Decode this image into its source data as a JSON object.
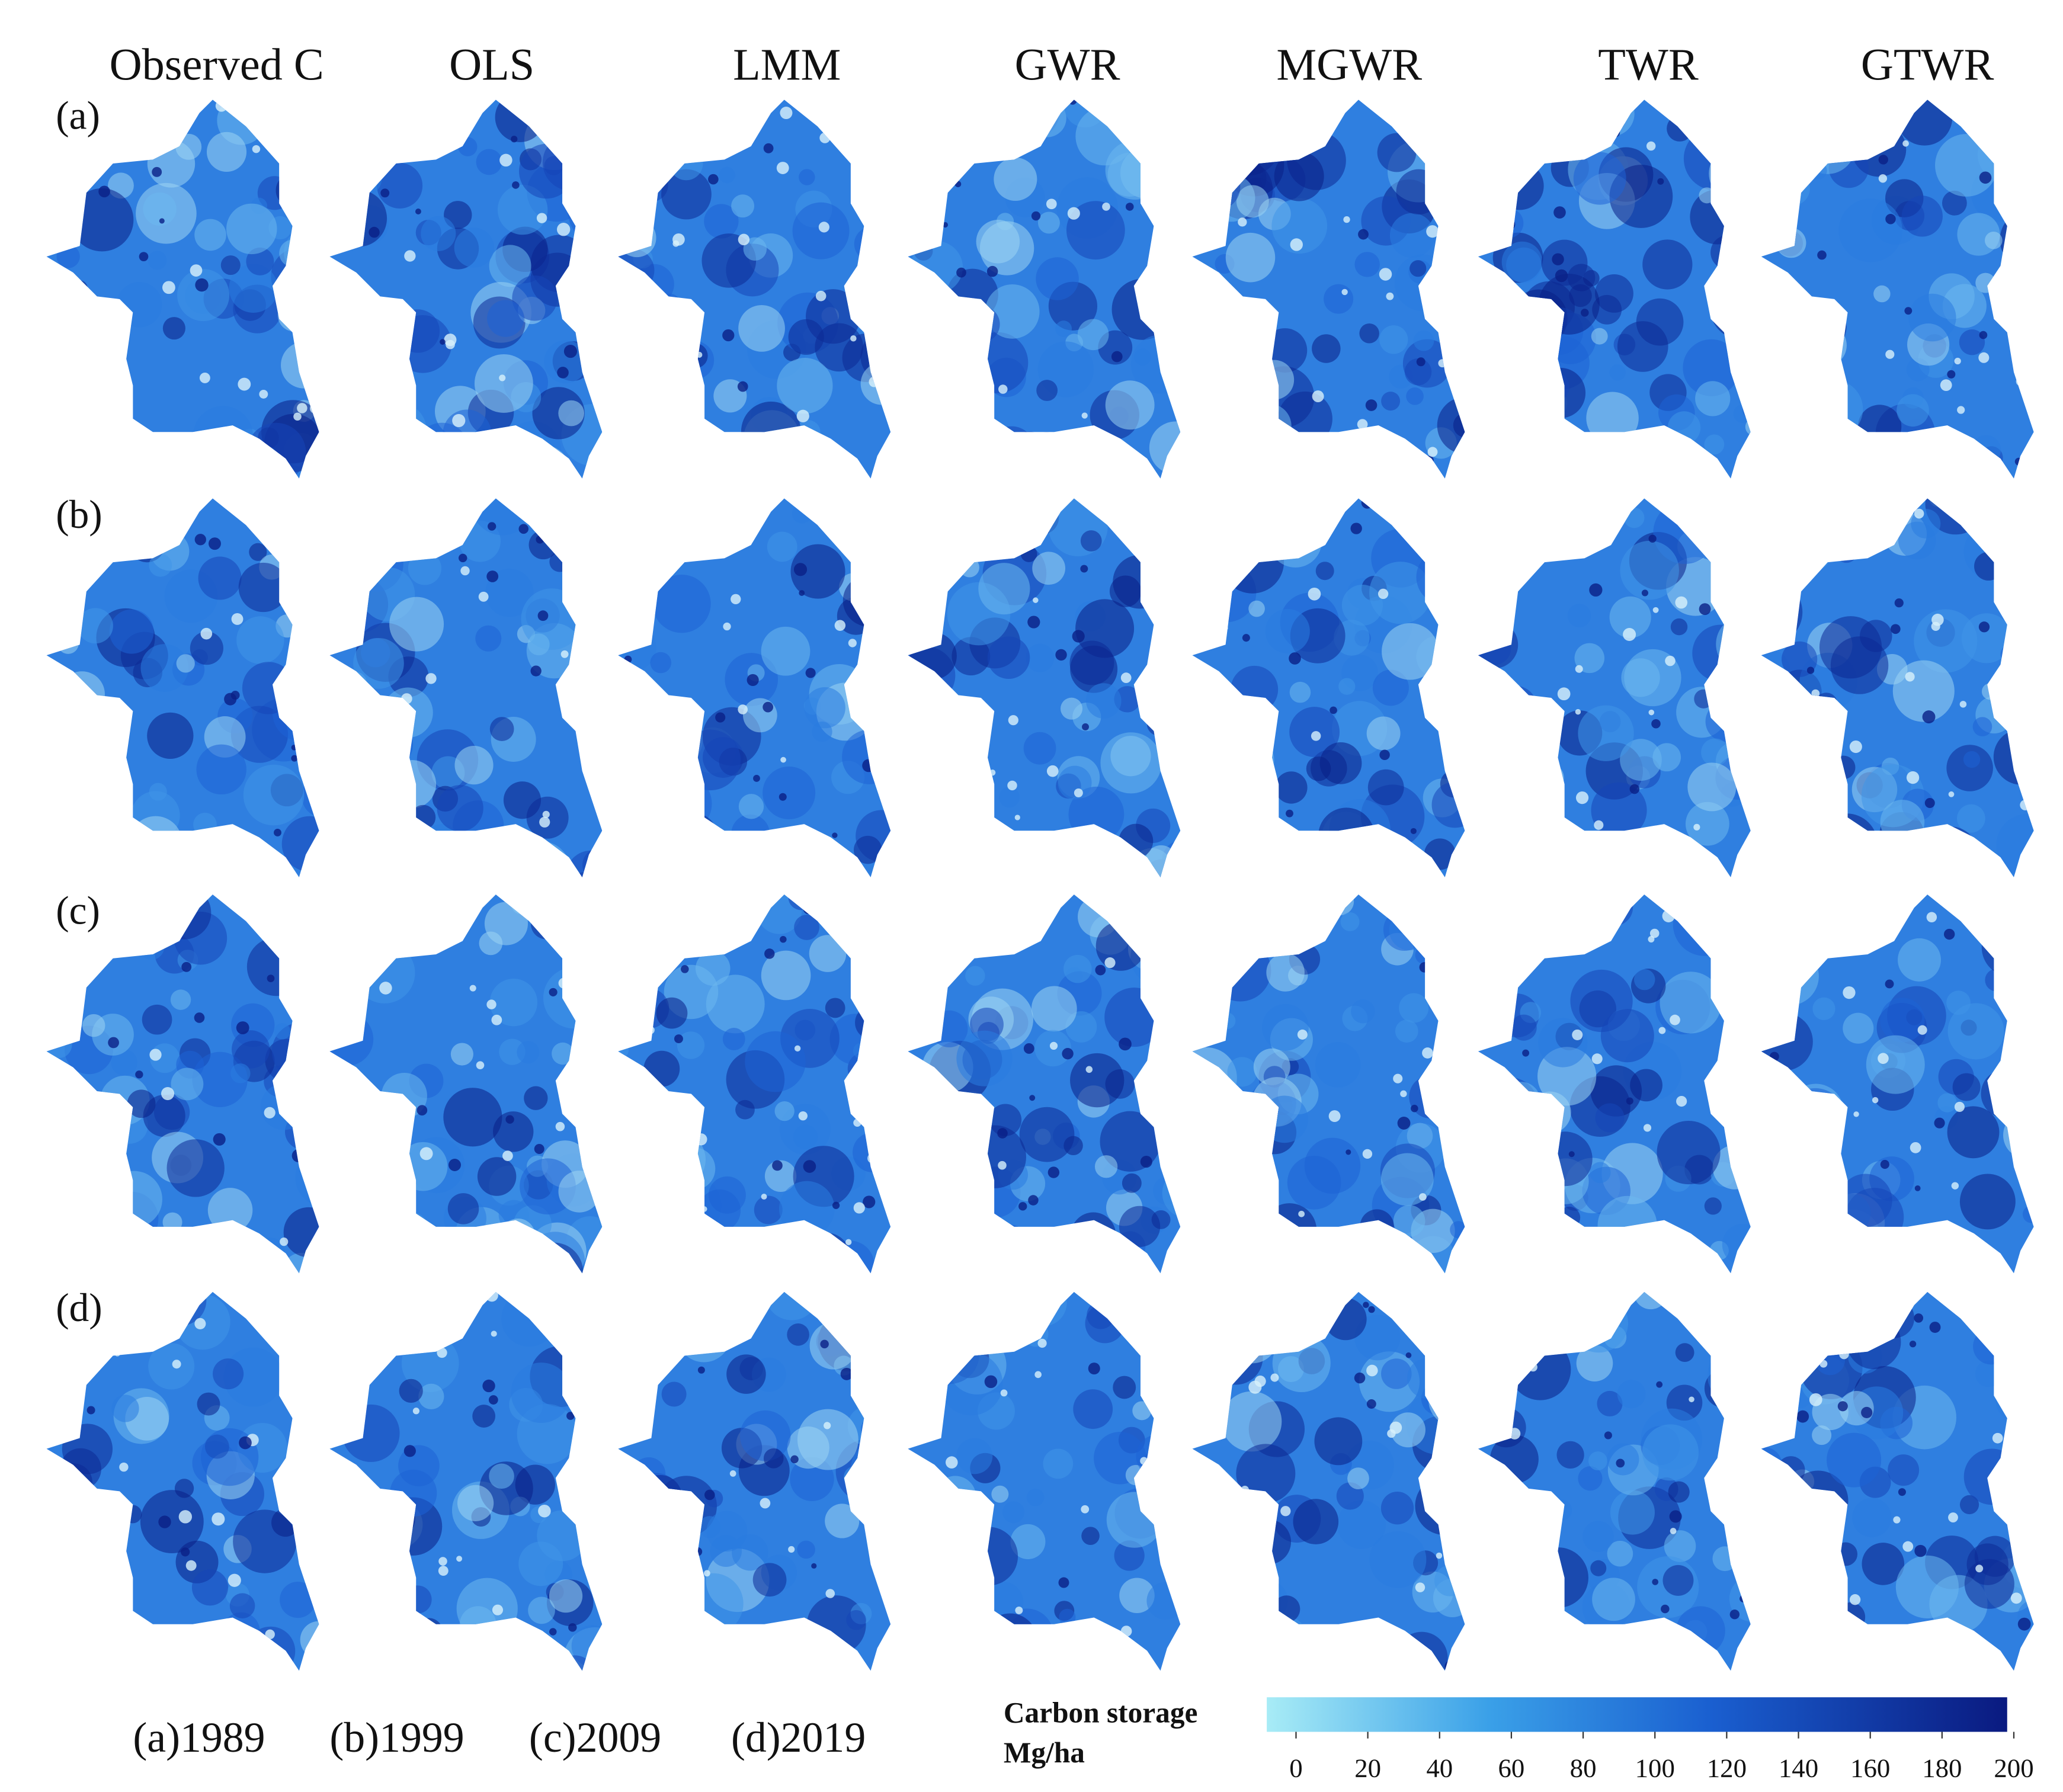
{
  "columns": [
    "Observed C",
    "OLS",
    "LMM",
    "GWR",
    "MGWR",
    "TWR",
    "GTWR"
  ],
  "rows": [
    "(a)",
    "(b)",
    "(c)",
    "(d)"
  ],
  "years": [
    "(a)1989",
    "(b)1999",
    "(c)2009",
    "(d)2019"
  ],
  "legend": {
    "title": "Carbon storage",
    "unit": "Mg/ha",
    "range": [
      0,
      200
    ],
    "ticks": [
      0,
      20,
      40,
      60,
      80,
      100,
      120,
      140,
      160,
      180,
      200
    ]
  }
}
